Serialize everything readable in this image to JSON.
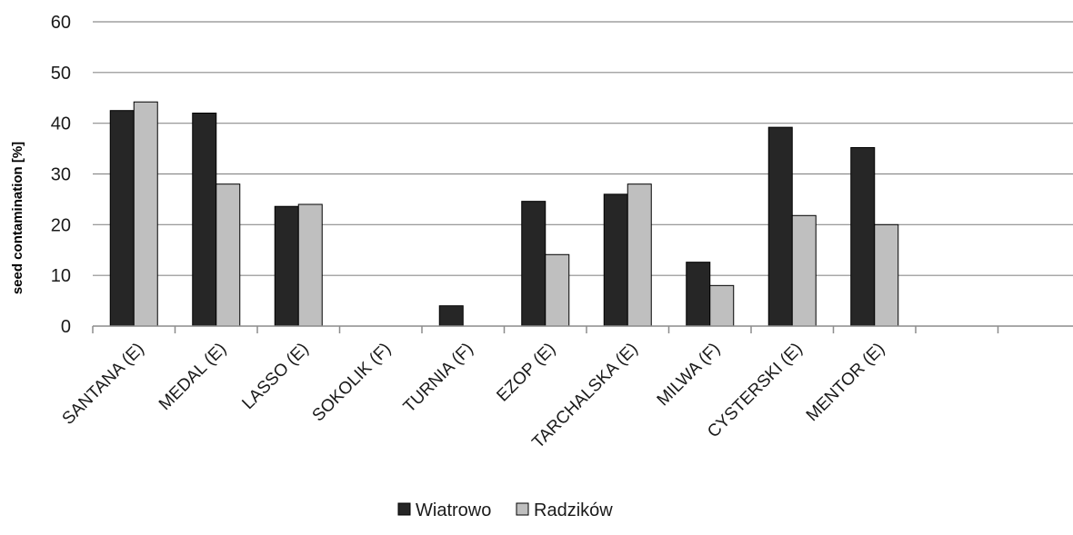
{
  "chart_data": {
    "type": "bar",
    "title": "",
    "xlabel": "",
    "ylabel": "seed contamination [%]",
    "ylim": [
      0,
      60
    ],
    "yticks": [
      0,
      10,
      20,
      30,
      40,
      50,
      60
    ],
    "grid": true,
    "legend_position": "bottom-center",
    "categories": [
      "SANTANA (E)",
      "MEDAL (E)",
      "LASSO (E)",
      "SOKOLIK (F)",
      "TURNIA (F)",
      "EZOP (E)",
      "TARCHALSKA (E)",
      "MILWA (F)",
      "CYSTERSKI (E)",
      "MENTOR (E)",
      "",
      ""
    ],
    "series": [
      {
        "name": "Wiatrowo",
        "color": "#262626",
        "values": [
          42.5,
          42,
          23.6,
          0,
          4,
          24.6,
          26,
          12.6,
          39.2,
          35.2,
          null,
          null
        ]
      },
      {
        "name": "Radzików",
        "color": "#bfbfbf",
        "values": [
          44.2,
          28,
          24,
          0,
          0,
          14.1,
          28,
          8,
          21.8,
          20,
          null,
          null
        ]
      }
    ]
  }
}
